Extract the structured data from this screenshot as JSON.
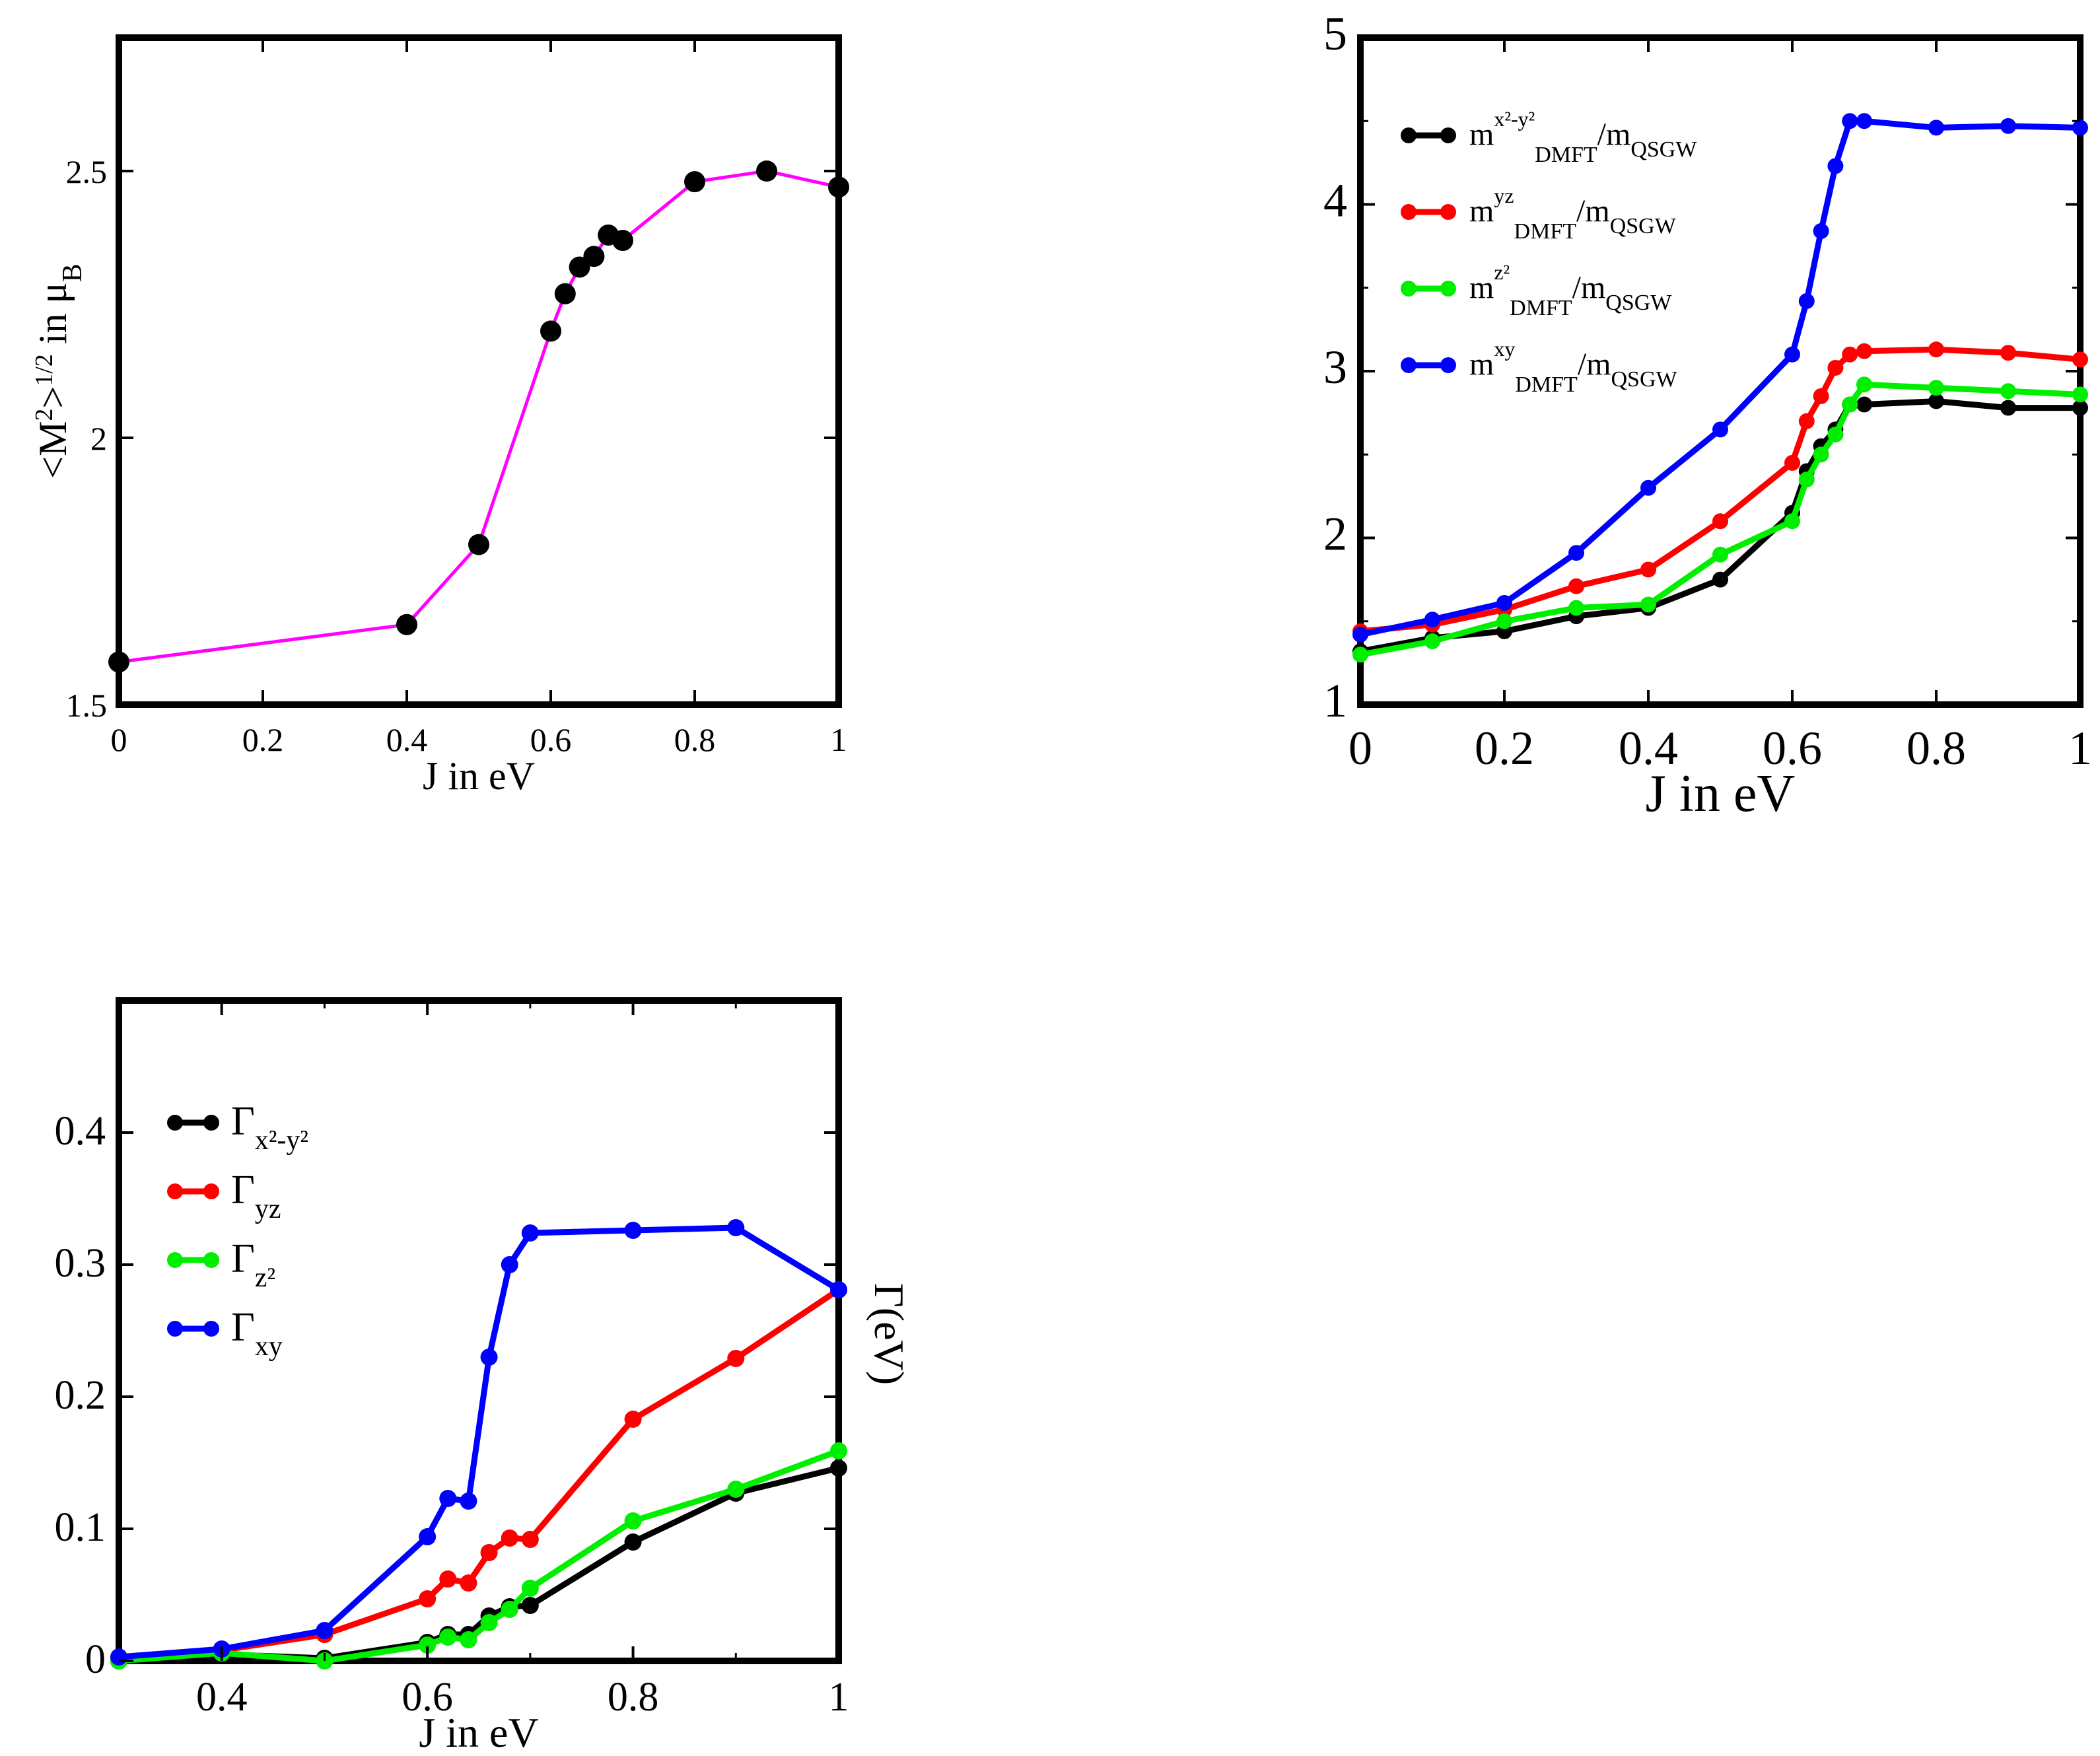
{
  "chart_data": [
    {
      "id": "moment",
      "type": "line",
      "title": "",
      "xlabel": "J in eV",
      "ylabel_parts": {
        "base": "<M",
        "sq": "2",
        "close": ">",
        "half": "1/2",
        "mid": " in μ",
        "sub": "B"
      },
      "xlim": [
        0,
        1
      ],
      "ylim": [
        1.5,
        2.75
      ],
      "xticks": [
        0,
        0.2,
        0.4,
        0.6,
        0.8,
        1
      ],
      "xtick_labels": [
        "0",
        "0.2",
        "0.4",
        "0.6",
        "0.8",
        "1"
      ],
      "yticks": [
        1.5,
        2,
        2.5
      ],
      "ytick_labels": [
        "1.5",
        "2",
        "2.5"
      ],
      "series": [
        {
          "name": "<M^2>^(1/2)",
          "line_color": "#ff00ff",
          "marker_color": "#000000",
          "x": [
            0,
            0.4,
            0.5,
            0.6,
            0.62,
            0.64,
            0.66,
            0.68,
            0.7,
            0.8,
            0.9,
            1.0
          ],
          "y": [
            1.58,
            1.65,
            1.8,
            2.2,
            2.27,
            2.32,
            2.34,
            2.38,
            2.37,
            2.48,
            2.5,
            2.47
          ]
        }
      ]
    },
    {
      "id": "mass",
      "type": "line",
      "title": "",
      "xlabel": "J in eV",
      "ylabel": "",
      "xlim": [
        0,
        1
      ],
      "ylim": [
        1,
        5
      ],
      "xticks": [
        0,
        0.2,
        0.4,
        0.6,
        0.8,
        1
      ],
      "xtick_labels": [
        "0",
        "0.2",
        "0.4",
        "0.6",
        "0.8",
        "1"
      ],
      "yticks": [
        1,
        2,
        3,
        4,
        5
      ],
      "ytick_labels": [
        "1",
        "2",
        "3",
        "4",
        "5"
      ],
      "legend_position": "top-left",
      "series": [
        {
          "name": "m^(x2-y2)_DMFT/m_QSGW",
          "label": {
            "base": "m",
            "sup": "x²-y²",
            "sub": "DMFT",
            "mid": "/m",
            "sub2": "QSGW"
          },
          "color": "#000000",
          "x": [
            0,
            0.1,
            0.2,
            0.3,
            0.4,
            0.5,
            0.6,
            0.62,
            0.64,
            0.66,
            0.68,
            0.7,
            0.8,
            0.9,
            1.0
          ],
          "y": [
            1.32,
            1.4,
            1.44,
            1.53,
            1.58,
            1.75,
            2.15,
            2.4,
            2.55,
            2.65,
            2.8,
            2.8,
            2.82,
            2.78,
            2.78
          ]
        },
        {
          "name": "m^(yz)_DMFT/m_QSGW",
          "label": {
            "base": "m",
            "sup": "yz",
            "sub": "DMFT",
            "mid": "/m",
            "sub2": "QSGW"
          },
          "color": "#ff0000",
          "x": [
            0,
            0.1,
            0.2,
            0.3,
            0.4,
            0.5,
            0.6,
            0.62,
            0.64,
            0.66,
            0.68,
            0.7,
            0.8,
            0.9,
            1.0
          ],
          "y": [
            1.44,
            1.48,
            1.57,
            1.71,
            1.81,
            2.1,
            2.45,
            2.7,
            2.85,
            3.02,
            3.1,
            3.12,
            3.13,
            3.11,
            3.07
          ]
        },
        {
          "name": "m^(z2)_DMFT/m_QSGW",
          "label": {
            "base": "m",
            "sup": "z²",
            "sub": "DMFT",
            "mid": "/m",
            "sub2": "QSGW"
          },
          "color": "#00ee00",
          "x": [
            0,
            0.1,
            0.2,
            0.3,
            0.4,
            0.5,
            0.6,
            0.62,
            0.64,
            0.66,
            0.68,
            0.7,
            0.8,
            0.9,
            1.0
          ],
          "y": [
            1.3,
            1.38,
            1.5,
            1.58,
            1.6,
            1.9,
            2.1,
            2.35,
            2.5,
            2.62,
            2.8,
            2.92,
            2.9,
            2.88,
            2.86
          ]
        },
        {
          "name": "m^(xy)_DMFT/m_QSGW",
          "label": {
            "base": "m",
            "sup": "xy",
            "sub": "DMFT",
            "mid": "/m",
            "sub2": "QSGW"
          },
          "color": "#0000ff",
          "x": [
            0,
            0.1,
            0.2,
            0.3,
            0.4,
            0.5,
            0.6,
            0.62,
            0.64,
            0.66,
            0.68,
            0.7,
            0.8,
            0.9,
            1.0
          ],
          "y": [
            1.42,
            1.51,
            1.61,
            1.91,
            2.3,
            2.65,
            3.1,
            3.42,
            3.84,
            4.23,
            4.5,
            4.5,
            4.46,
            4.47,
            4.46
          ]
        }
      ]
    },
    {
      "id": "gamma",
      "type": "line",
      "title": "",
      "xlabel": "J in eV",
      "ylabel": "Γ(eV)",
      "xlim": [
        0.3,
        1
      ],
      "ylim": [
        0,
        0.5
      ],
      "xticks": [
        0.4,
        0.6,
        0.8,
        1
      ],
      "xtick_labels": [
        "0.4",
        "0.6",
        "0.8",
        "1"
      ],
      "yticks": [
        0,
        0.1,
        0.2,
        0.3,
        0.4
      ],
      "ytick_labels": [
        "0",
        "0.1",
        "0.2",
        "0.3",
        "0.4"
      ],
      "legend_position": "top-left",
      "series": [
        {
          "name": "Γ_(x2-y2)",
          "label": {
            "base": "Γ",
            "sub": "x²-y²"
          },
          "color": "#000000",
          "x": [
            0.3,
            0.4,
            0.5,
            0.6,
            0.62,
            0.64,
            0.66,
            0.68,
            0.7,
            0.8,
            0.9,
            1.0
          ],
          "y": [
            0.0,
            0.005,
            0.002,
            0.014,
            0.02,
            0.02,
            0.034,
            0.041,
            0.042,
            0.09,
            0.127,
            0.146
          ]
        },
        {
          "name": "Γ_yz",
          "label": {
            "base": "Γ",
            "sub": "yz"
          },
          "color": "#ff0000",
          "x": [
            0.3,
            0.4,
            0.5,
            0.6,
            0.62,
            0.64,
            0.66,
            0.68,
            0.7,
            0.8,
            0.9,
            1.0
          ],
          "y": [
            0.002,
            0.008,
            0.02,
            0.047,
            0.062,
            0.059,
            0.082,
            0.093,
            0.092,
            0.183,
            0.229,
            0.281
          ]
        },
        {
          "name": "Γ_(z2)",
          "label": {
            "base": "Γ",
            "sub": "z²"
          },
          "color": "#00ee00",
          "x": [
            0.3,
            0.4,
            0.5,
            0.6,
            0.62,
            0.64,
            0.66,
            0.68,
            0.7,
            0.8,
            0.9,
            1.0
          ],
          "y": [
            0.0,
            0.006,
            0.0,
            0.012,
            0.018,
            0.016,
            0.029,
            0.039,
            0.055,
            0.106,
            0.13,
            0.159
          ]
        },
        {
          "name": "Γ_xy",
          "label": {
            "base": "Γ",
            "sub": "xy"
          },
          "color": "#0000ff",
          "x": [
            0.3,
            0.4,
            0.5,
            0.6,
            0.62,
            0.64,
            0.66,
            0.68,
            0.7,
            0.8,
            0.9,
            1.0
          ],
          "y": [
            0.003,
            0.009,
            0.023,
            0.094,
            0.123,
            0.121,
            0.23,
            0.3,
            0.324,
            0.326,
            0.328,
            0.281
          ]
        }
      ]
    }
  ]
}
